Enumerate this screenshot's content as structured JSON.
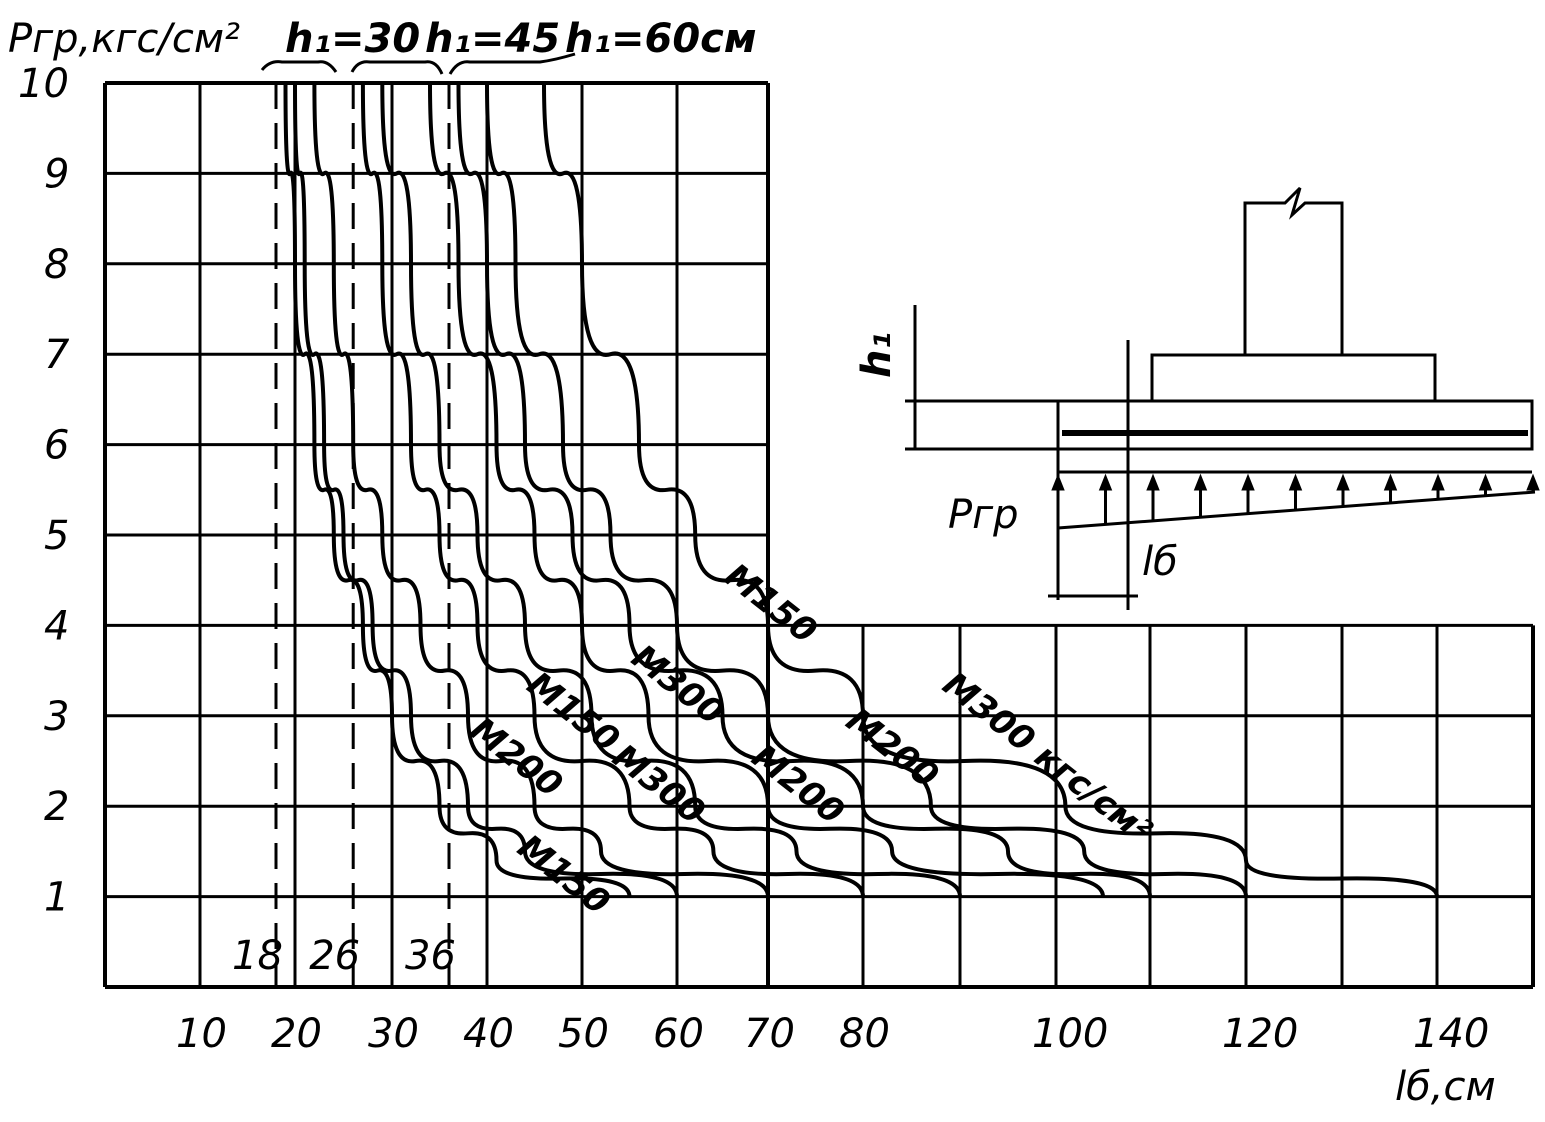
{
  "chart_data": {
    "type": "line",
    "ylabel": "Pгр,кгс/см²",
    "xlabel": "lб,см",
    "x_ticks": [
      10,
      20,
      30,
      40,
      50,
      60,
      70,
      80,
      100,
      120,
      140
    ],
    "y_ticks": [
      1,
      2,
      3,
      4,
      5,
      6,
      7,
      8,
      9,
      10
    ],
    "xlim": [
      0,
      150
    ],
    "ylim": [
      0,
      10
    ],
    "grid": true,
    "group_labels": [
      "h₁=30",
      "h₁=45",
      "h₁=60см"
    ],
    "vertical_markers": [
      {
        "x": 18,
        "label": "18"
      },
      {
        "x": 26,
        "label": "26"
      },
      {
        "x": 36,
        "label": "36"
      }
    ],
    "series": [
      {
        "group": "h₁=30",
        "grade": "M150",
        "points": [
          [
            19,
            10
          ],
          [
            20,
            8
          ],
          [
            22,
            6
          ],
          [
            24,
            5
          ],
          [
            27,
            4
          ],
          [
            30,
            3
          ],
          [
            35,
            2
          ],
          [
            41,
            1.4
          ],
          [
            55,
            1
          ]
        ]
      },
      {
        "group": "h₁=30",
        "grade": "M200",
        "points": [
          [
            20,
            10
          ],
          [
            21,
            8
          ],
          [
            23,
            6
          ],
          [
            25,
            5
          ],
          [
            28,
            4
          ],
          [
            32,
            3
          ],
          [
            38,
            2
          ],
          [
            44,
            1.5
          ],
          [
            60,
            1
          ]
        ]
      },
      {
        "group": "h₁=30",
        "grade": "M300",
        "points": [
          [
            22,
            10
          ],
          [
            24,
            8
          ],
          [
            26,
            6
          ],
          [
            29,
            5
          ],
          [
            33,
            4
          ],
          [
            38,
            3
          ],
          [
            45,
            2
          ],
          [
            52,
            1.5
          ],
          [
            70,
            1
          ]
        ]
      },
      {
        "group": "h₁=45",
        "grade": "M150",
        "points": [
          [
            27,
            10
          ],
          [
            29,
            8
          ],
          [
            32,
            6
          ],
          [
            35,
            5
          ],
          [
            39,
            4
          ],
          [
            45,
            3
          ],
          [
            55,
            2
          ],
          [
            64,
            1.5
          ],
          [
            80,
            1
          ]
        ]
      },
      {
        "group": "h₁=45",
        "grade": "M200",
        "points": [
          [
            29,
            10
          ],
          [
            32,
            8
          ],
          [
            35,
            6
          ],
          [
            39,
            5
          ],
          [
            44,
            4
          ],
          [
            51,
            3
          ],
          [
            62,
            2
          ],
          [
            73,
            1.5
          ],
          [
            90,
            1
          ]
        ]
      },
      {
        "group": "h₁=45",
        "grade": "M300",
        "points": [
          [
            34,
            10
          ],
          [
            37,
            8
          ],
          [
            41,
            6
          ],
          [
            45,
            5
          ],
          [
            50,
            4
          ],
          [
            57,
            3
          ],
          [
            70,
            2
          ],
          [
            83,
            1.5
          ],
          [
            105,
            1
          ]
        ]
      },
      {
        "group": "h₁=60см",
        "grade": "M150",
        "points": [
          [
            37,
            10
          ],
          [
            40,
            8
          ],
          [
            44,
            6
          ],
          [
            49,
            5
          ],
          [
            55,
            4
          ],
          [
            65,
            3
          ],
          [
            80,
            2
          ],
          [
            95,
            1.5
          ],
          [
            110,
            1
          ]
        ]
      },
      {
        "group": "h₁=60см",
        "grade": "M200",
        "points": [
          [
            40,
            10
          ],
          [
            43,
            8
          ],
          [
            48,
            6
          ],
          [
            53,
            5
          ],
          [
            60,
            4
          ],
          [
            70,
            3
          ],
          [
            87,
            2
          ],
          [
            103,
            1.5
          ],
          [
            120,
            1
          ]
        ]
      },
      {
        "group": "h₁=60см",
        "grade": "M300",
        "points": [
          [
            46,
            10
          ],
          [
            50,
            8
          ],
          [
            56,
            6
          ],
          [
            62,
            5
          ],
          [
            70,
            4
          ],
          [
            80,
            3
          ],
          [
            101,
            2
          ],
          [
            120,
            1.4
          ],
          [
            140,
            1
          ]
        ]
      }
    ],
    "curve_labels": [
      {
        "text": "M150",
        "x": 43,
        "y": 1.5
      },
      {
        "text": "M200",
        "x": 38,
        "y": 2.8
      },
      {
        "text": "M150",
        "x": 44,
        "y": 3.3
      },
      {
        "text": "M300",
        "x": 53,
        "y": 2.5
      },
      {
        "text": "M300",
        "x": 55,
        "y": 3.6
      },
      {
        "text": "M200",
        "x": 68,
        "y": 2.5
      },
      {
        "text": "M150",
        "x": 65,
        "y": 4.5
      },
      {
        "text": "M200",
        "x": 78,
        "y": 2.9
      },
      {
        "text": "M300 кгс/см²",
        "x": 88,
        "y": 3.3
      }
    ]
  },
  "inset": {
    "h_label": "h₁",
    "p_label": "Pгр",
    "l_label": "lб"
  }
}
